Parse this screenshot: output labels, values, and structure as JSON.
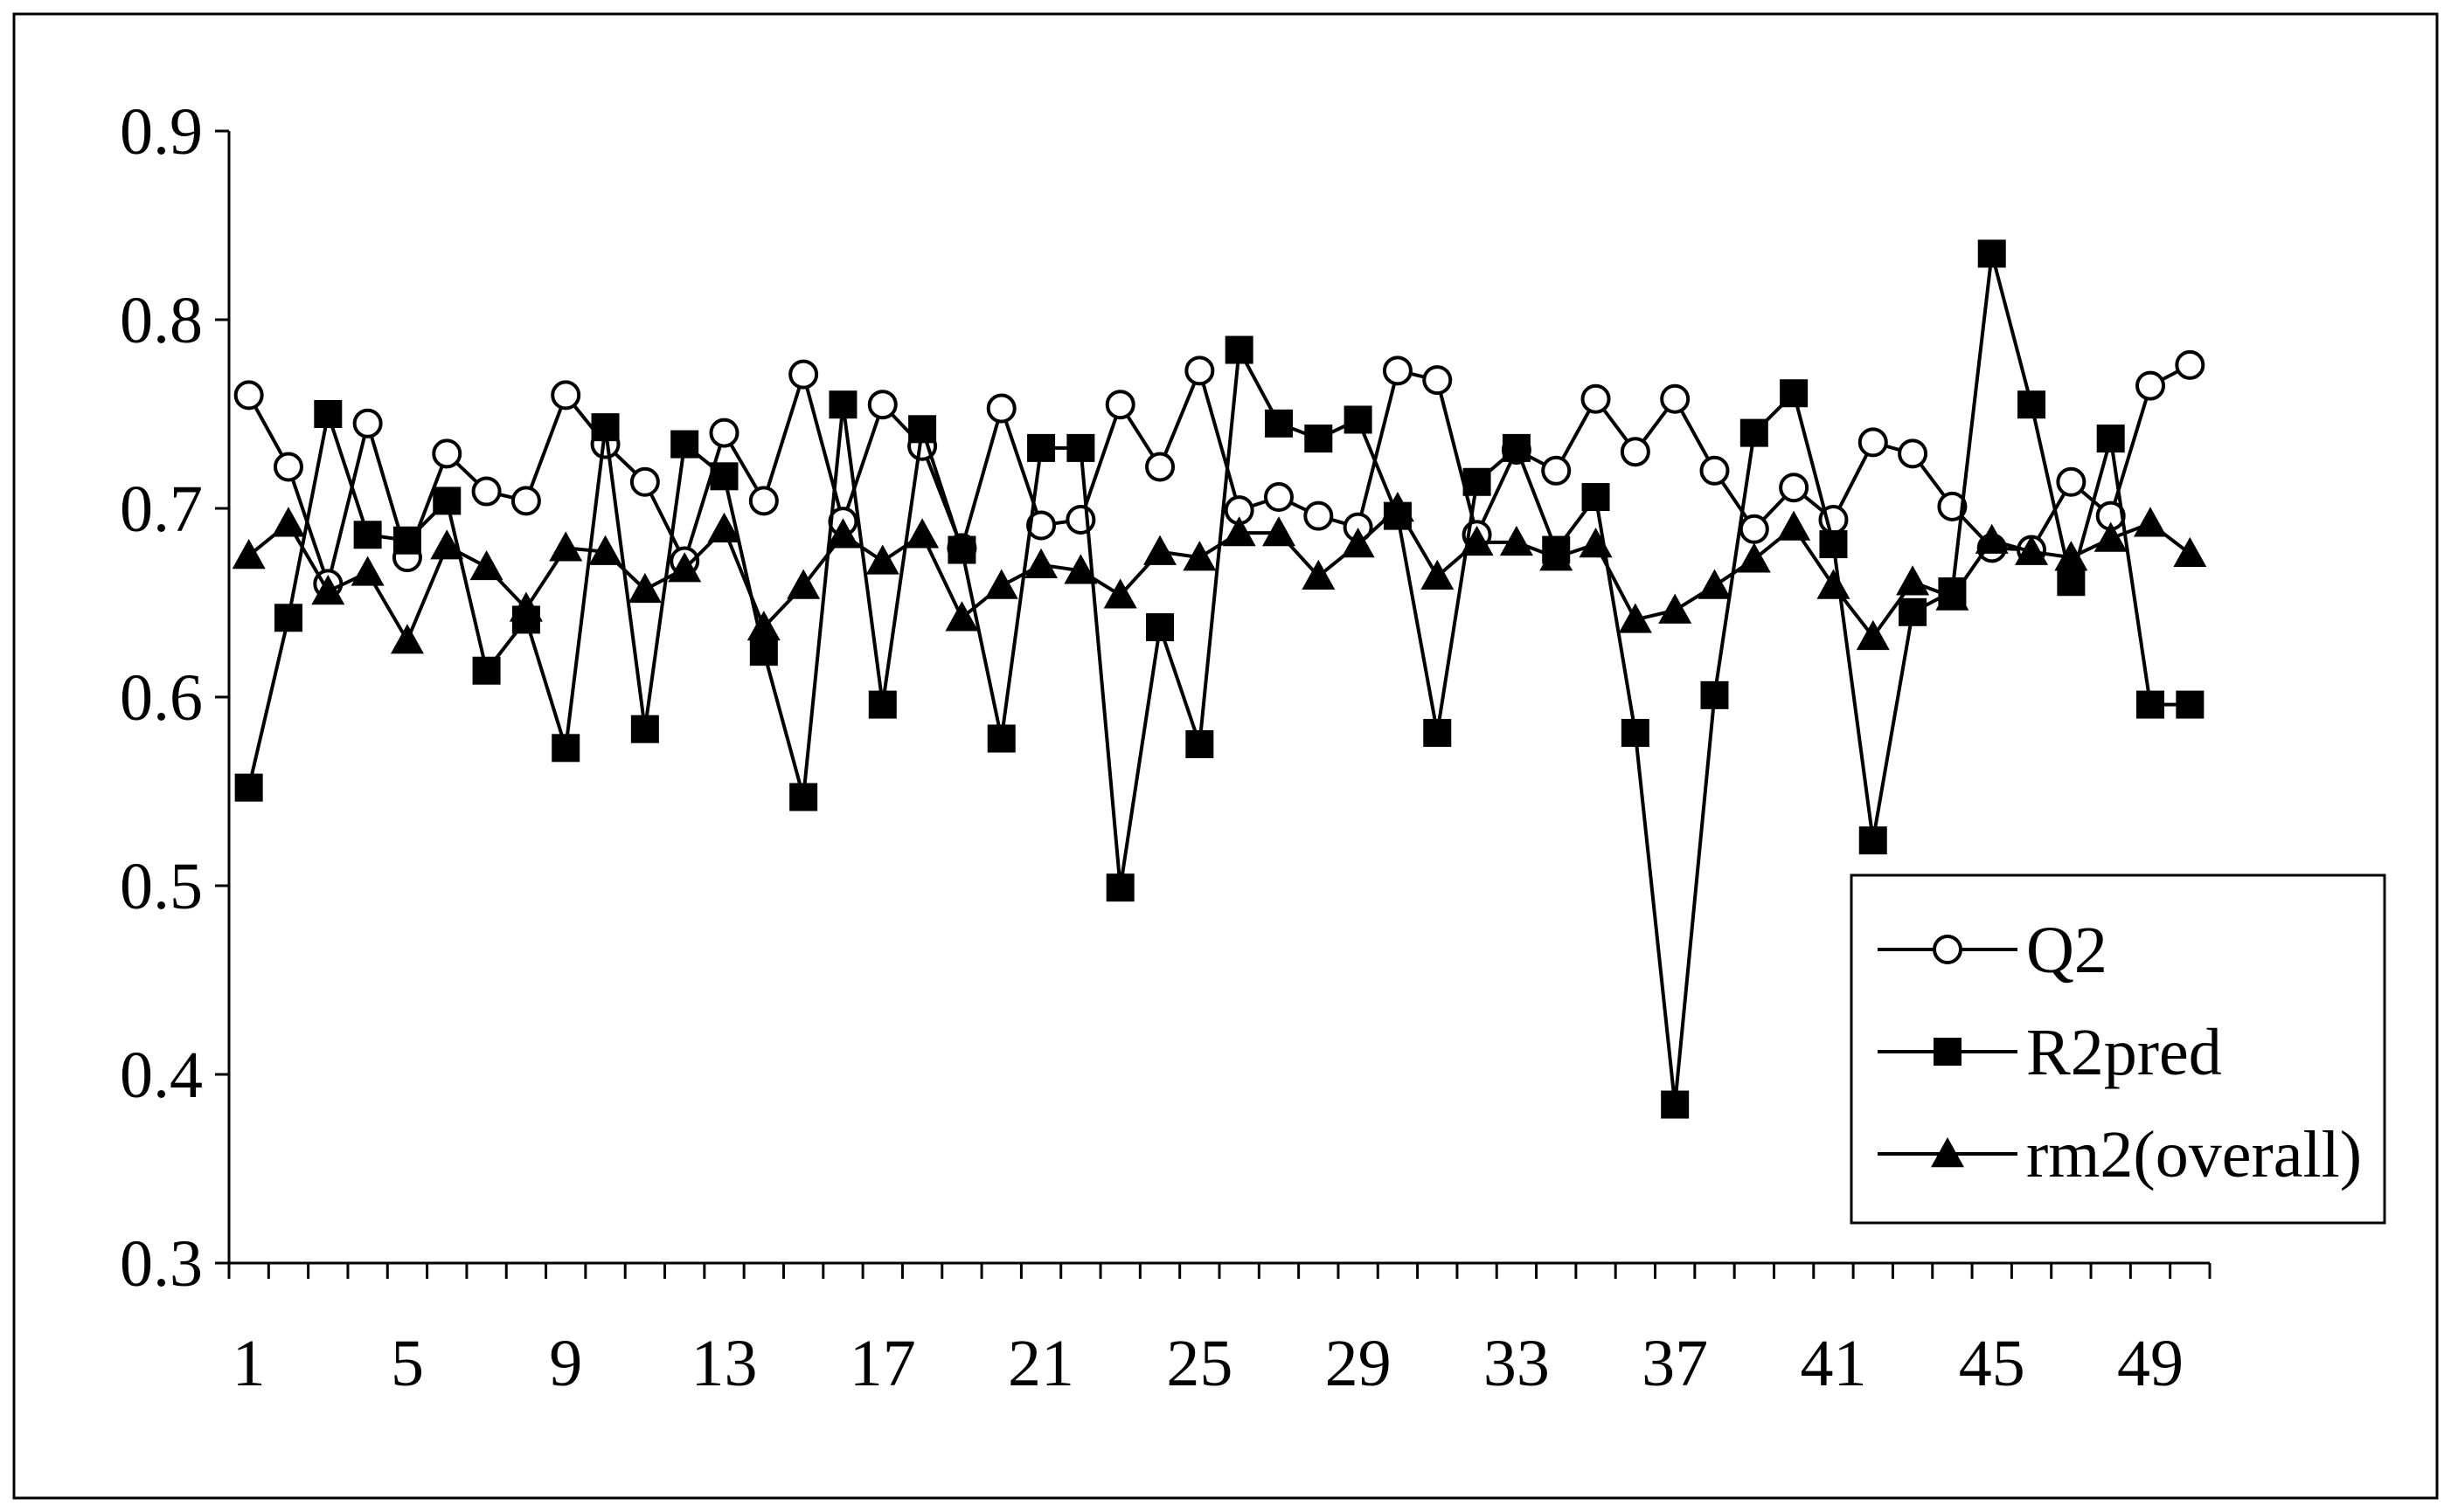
{
  "chart_data": {
    "type": "line",
    "title": "",
    "xlabel": "",
    "ylabel": "",
    "ylim": [
      0.3,
      0.9
    ],
    "yticks": [
      "0.3",
      "0.4",
      "0.5",
      "0.6",
      "0.7",
      "0.8",
      "0.9"
    ],
    "xtick_labels": [
      "1",
      "5",
      "9",
      "13",
      "17",
      "21",
      "25",
      "29",
      "33",
      "37",
      "41",
      "45",
      "49"
    ],
    "x": [
      1,
      2,
      3,
      4,
      5,
      6,
      7,
      8,
      9,
      10,
      11,
      12,
      13,
      14,
      15,
      16,
      17,
      18,
      19,
      20,
      21,
      22,
      23,
      24,
      25,
      26,
      27,
      28,
      29,
      30,
      31,
      32,
      33,
      34,
      35,
      36,
      37,
      38,
      39,
      40,
      41,
      42,
      43,
      44,
      45,
      46,
      47,
      48,
      49,
      50
    ],
    "grid": false,
    "legend_position": "bottom-right",
    "series": [
      {
        "name": "Q2",
        "marker": "circle-open",
        "values": [
          0.76,
          0.722,
          0.66,
          0.745,
          0.674,
          0.729,
          0.709,
          0.704,
          0.76,
          0.734,
          0.714,
          0.672,
          0.74,
          0.704,
          0.771,
          0.693,
          0.755,
          0.733,
          0.679,
          0.753,
          0.691,
          0.694,
          0.755,
          0.722,
          0.773,
          0.699,
          0.706,
          0.696,
          0.69,
          0.773,
          0.768,
          0.686,
          0.731,
          0.72,
          0.758,
          0.73,
          0.758,
          0.72,
          0.689,
          0.711,
          0.694,
          0.735,
          0.729,
          0.701,
          0.679,
          0.678,
          0.714,
          0.696,
          0.765,
          0.776
        ]
      },
      {
        "name": "R2pred",
        "marker": "square-filled",
        "values": [
          0.552,
          0.642,
          0.75,
          0.686,
          0.683,
          0.704,
          0.614,
          0.641,
          0.573,
          0.743,
          0.583,
          0.734,
          0.717,
          0.624,
          0.547,
          0.755,
          0.596,
          0.742,
          0.678,
          0.578,
          0.732,
          0.732,
          0.499,
          0.637,
          0.575,
          0.784,
          0.745,
          0.737,
          0.747,
          0.696,
          0.581,
          0.714,
          0.732,
          0.678,
          0.706,
          0.581,
          0.384,
          0.601,
          0.74,
          0.761,
          0.681,
          0.524,
          0.645,
          0.656,
          0.835,
          0.755,
          0.661,
          0.737,
          0.596,
          0.596
        ]
      },
      {
        "name": "rm2(overall)",
        "marker": "triangle-filled",
        "values": [
          0.675,
          0.692,
          0.656,
          0.666,
          0.63,
          0.68,
          0.669,
          0.647,
          0.679,
          0.677,
          0.657,
          0.668,
          0.689,
          0.637,
          0.659,
          0.686,
          0.672,
          0.686,
          0.642,
          0.659,
          0.67,
          0.667,
          0.654,
          0.677,
          0.674,
          0.687,
          0.687,
          0.664,
          0.681,
          0.7,
          0.664,
          0.682,
          0.682,
          0.674,
          0.681,
          0.641,
          0.646,
          0.659,
          0.673,
          0.69,
          0.659,
          0.632,
          0.661,
          0.653,
          0.683,
          0.677,
          0.674,
          0.684,
          0.692,
          0.676
        ]
      }
    ]
  },
  "colors": {
    "line": "#000000",
    "background": "#ffffff",
    "marker_open_fill": "#ffffff"
  }
}
